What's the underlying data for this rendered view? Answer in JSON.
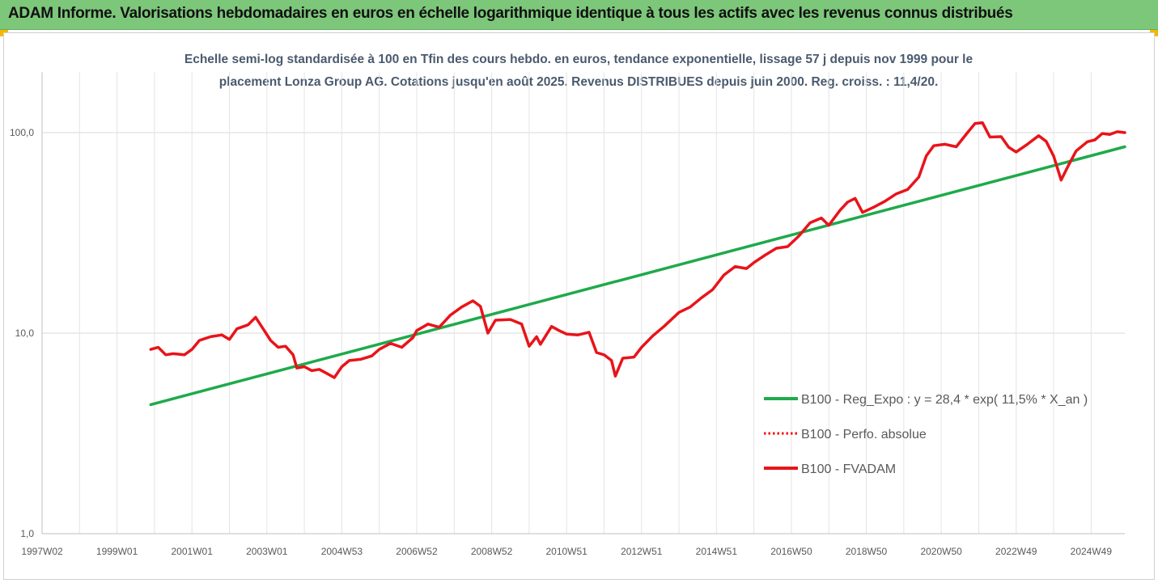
{
  "banner": {
    "title": "ADAM Informe. Valorisations hebdomadaires en euros en échelle logarithmique identique à tous les actifs avec les revenus connus distribués",
    "background": "#7dc77a",
    "corner_color": "#f5b800"
  },
  "chart_data": {
    "type": "line",
    "title_line1": "Echelle semi-log standardisée à 100 en Tfin des cours hebdo. en euros, tendance exponentielle, lissage 57 j depuis nov 1999 pour le",
    "title_line2": "placement Lonza Group AG. Cotations jusqu'en août 2025. Revenus DISTRIBUES depuis juin 2000. Reg. croiss. : 11,4/20.",
    "y_scale": "log",
    "ylim": [
      1,
      200
    ],
    "xlim": [
      1997.0,
      2025.9
    ],
    "y_ticks": [
      {
        "value": 1,
        "label": "1,0"
      },
      {
        "value": 10,
        "label": "10,0"
      },
      {
        "value": 100,
        "label": "100,0"
      }
    ],
    "x_ticks": [
      {
        "value": 1997.0,
        "label": "1997W02"
      },
      {
        "value": 1999.0,
        "label": "1999W01"
      },
      {
        "value": 2001.0,
        "label": "2001W01"
      },
      {
        "value": 2003.0,
        "label": "2003W01"
      },
      {
        "value": 2005.0,
        "label": "2004W53"
      },
      {
        "value": 2007.0,
        "label": "2006W52"
      },
      {
        "value": 2009.0,
        "label": "2008W52"
      },
      {
        "value": 2011.0,
        "label": "2010W51"
      },
      {
        "value": 2013.0,
        "label": "2012W51"
      },
      {
        "value": 2015.0,
        "label": "2014W51"
      },
      {
        "value": 2017.0,
        "label": "2016W50"
      },
      {
        "value": 2019.0,
        "label": "2018W50"
      },
      {
        "value": 2021.0,
        "label": "2020W50"
      },
      {
        "value": 2023.0,
        "label": "2022W49"
      },
      {
        "value": 2025.0,
        "label": "2024W49"
      }
    ],
    "gridlines": true,
    "legend_position": "bottom-right",
    "series": [
      {
        "name": "B100 - Reg_Expo : y = 28,4 * exp( 11,5% *  X_an )",
        "color": "#1faa4b",
        "style": "solid",
        "points": [
          [
            1999.9,
            4.4
          ],
          [
            2025.9,
            85.0
          ]
        ]
      },
      {
        "name": "B100 - Perfo. absolue",
        "color": "#ff0000",
        "style": "dotted",
        "points": []
      },
      {
        "name": "B100 - FVADAM",
        "color": "#e8141a",
        "style": "solid",
        "points": [
          [
            1999.9,
            8.3
          ],
          [
            2000.1,
            8.5
          ],
          [
            2000.3,
            7.8
          ],
          [
            2000.5,
            7.9
          ],
          [
            2000.8,
            7.8
          ],
          [
            2001.0,
            8.3
          ],
          [
            2001.2,
            9.2
          ],
          [
            2001.5,
            9.6
          ],
          [
            2001.8,
            9.8
          ],
          [
            2002.0,
            9.3
          ],
          [
            2002.2,
            10.5
          ],
          [
            2002.5,
            11.0
          ],
          [
            2002.7,
            12.0
          ],
          [
            2002.9,
            10.5
          ],
          [
            2003.1,
            9.2
          ],
          [
            2003.3,
            8.5
          ],
          [
            2003.5,
            8.6
          ],
          [
            2003.7,
            7.8
          ],
          [
            2003.8,
            6.7
          ],
          [
            2004.0,
            6.8
          ],
          [
            2004.2,
            6.5
          ],
          [
            2004.4,
            6.6
          ],
          [
            2004.6,
            6.3
          ],
          [
            2004.8,
            6.0
          ],
          [
            2005.0,
            6.8
          ],
          [
            2005.2,
            7.3
          ],
          [
            2005.5,
            7.4
          ],
          [
            2005.8,
            7.7
          ],
          [
            2006.0,
            8.3
          ],
          [
            2006.3,
            8.9
          ],
          [
            2006.6,
            8.5
          ],
          [
            2006.9,
            9.5
          ],
          [
            2007.0,
            10.3
          ],
          [
            2007.3,
            11.1
          ],
          [
            2007.6,
            10.7
          ],
          [
            2007.9,
            12.3
          ],
          [
            2008.2,
            13.5
          ],
          [
            2008.5,
            14.5
          ],
          [
            2008.7,
            13.6
          ],
          [
            2008.9,
            10.0
          ],
          [
            2009.1,
            11.6
          ],
          [
            2009.5,
            11.7
          ],
          [
            2009.8,
            11.1
          ],
          [
            2010.0,
            8.6
          ],
          [
            2010.2,
            9.6
          ],
          [
            2010.3,
            8.8
          ],
          [
            2010.6,
            10.8
          ],
          [
            2010.8,
            10.3
          ],
          [
            2011.0,
            9.9
          ],
          [
            2011.3,
            9.8
          ],
          [
            2011.6,
            10.1
          ],
          [
            2011.8,
            8.0
          ],
          [
            2012.0,
            7.8
          ],
          [
            2012.2,
            7.3
          ],
          [
            2012.3,
            6.1
          ],
          [
            2012.5,
            7.5
          ],
          [
            2012.8,
            7.6
          ],
          [
            2013.0,
            8.5
          ],
          [
            2013.3,
            9.7
          ],
          [
            2013.6,
            10.8
          ],
          [
            2014.0,
            12.7
          ],
          [
            2014.3,
            13.5
          ],
          [
            2014.6,
            15.0
          ],
          [
            2014.9,
            16.5
          ],
          [
            2015.2,
            19.5
          ],
          [
            2015.5,
            21.5
          ],
          [
            2015.8,
            21.0
          ],
          [
            2016.0,
            22.5
          ],
          [
            2016.3,
            24.5
          ],
          [
            2016.6,
            26.5
          ],
          [
            2016.9,
            27.0
          ],
          [
            2017.2,
            30.5
          ],
          [
            2017.5,
            35.5
          ],
          [
            2017.8,
            37.5
          ],
          [
            2018.0,
            34.5
          ],
          [
            2018.3,
            41.0
          ],
          [
            2018.5,
            45.0
          ],
          [
            2018.7,
            47.0
          ],
          [
            2018.9,
            40.0
          ],
          [
            2019.2,
            42.5
          ],
          [
            2019.5,
            45.5
          ],
          [
            2019.8,
            49.5
          ],
          [
            2020.1,
            52.0
          ],
          [
            2020.4,
            60.0
          ],
          [
            2020.6,
            76.5
          ],
          [
            2020.8,
            86.0
          ],
          [
            2021.1,
            87.5
          ],
          [
            2021.4,
            85.0
          ],
          [
            2021.7,
            100.0
          ],
          [
            2021.9,
            111.0
          ],
          [
            2022.1,
            112.0
          ],
          [
            2022.3,
            95.0
          ],
          [
            2022.6,
            95.5
          ],
          [
            2022.8,
            84.5
          ],
          [
            2023.0,
            80.0
          ],
          [
            2023.3,
            87.5
          ],
          [
            2023.6,
            96.5
          ],
          [
            2023.8,
            90.5
          ],
          [
            2024.0,
            76.5
          ],
          [
            2024.2,
            58.0
          ],
          [
            2024.4,
            69.0
          ],
          [
            2024.6,
            81.0
          ],
          [
            2024.9,
            90.0
          ],
          [
            2025.1,
            92.0
          ],
          [
            2025.3,
            99.0
          ],
          [
            2025.5,
            98.0
          ],
          [
            2025.7,
            101.0
          ],
          [
            2025.9,
            100.0
          ]
        ]
      }
    ]
  }
}
